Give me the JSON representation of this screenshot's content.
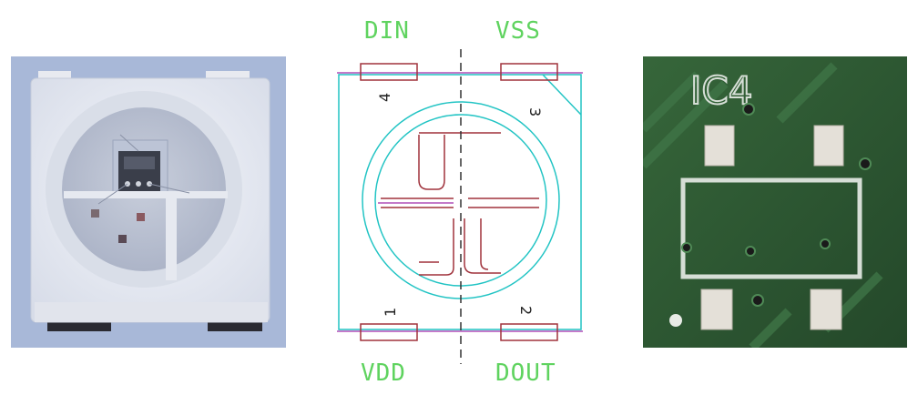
{
  "panels": {
    "led_photo": {
      "description_icon": "led-package-photo"
    },
    "footprint": {
      "pins": {
        "din": "DIN",
        "vss": "VSS",
        "vdd": "VDD",
        "dout": "DOUT"
      },
      "pin_numbers": {
        "p1": "1",
        "p2": "2",
        "p3": "3",
        "p4": "4"
      },
      "colors": {
        "outline": "#22c4c4",
        "pad": "#a0323c",
        "label": "#5fd35f"
      }
    },
    "pcb_photo": {
      "silkscreen_label": "IC4",
      "colors": {
        "board": "#2d5a32",
        "silkscreen": "#d6ded6",
        "pad": "#e4e0d8"
      }
    }
  }
}
